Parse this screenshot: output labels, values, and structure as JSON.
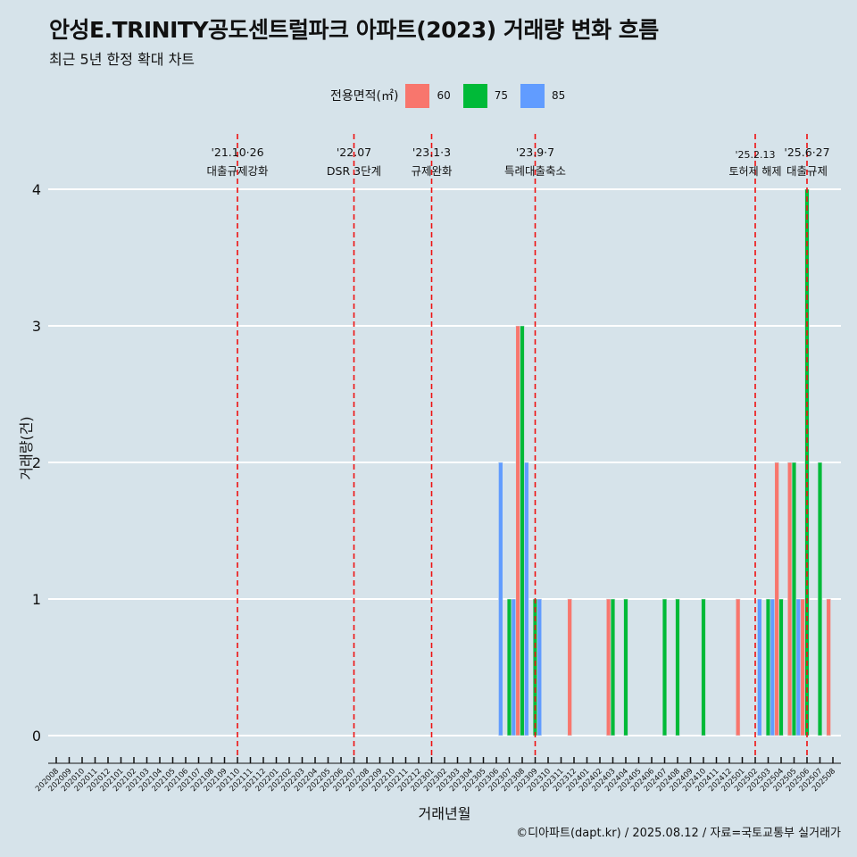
{
  "title": "안성E.TRINITY공도센트럴파크 아파트(2023) 거래량 변화 흐름",
  "subtitle": "최근 5년 한정 확대 차트",
  "caption": "©디아파트(dapt.kr) / 2025.08.12 / 자료=국토교통부 실거래가",
  "legend": {
    "title": "전용면적(㎡)",
    "items": [
      {
        "label": "60",
        "color": "#f8766d"
      },
      {
        "label": "75",
        "color": "#00ba38"
      },
      {
        "label": "85",
        "color": "#619cff"
      }
    ]
  },
  "chart_data": {
    "type": "bar",
    "title": "안성E.TRINITY공도센트럴파크 아파트(2023) 거래량 변화 흐름",
    "xlabel": "거래년월",
    "ylabel": "거래량(건)",
    "ylim": [
      0,
      4
    ],
    "yticks": [
      0,
      1,
      2,
      3,
      4
    ],
    "grid": "horizontal",
    "legend_position": "top",
    "categories": [
      "202008",
      "202009",
      "202010",
      "202011",
      "202012",
      "202101",
      "202102",
      "202103",
      "202104",
      "202105",
      "202106",
      "202107",
      "202108",
      "202109",
      "202110",
      "202111",
      "202112",
      "202201",
      "202202",
      "202203",
      "202204",
      "202205",
      "202206",
      "202207",
      "202208",
      "202209",
      "202210",
      "202211",
      "202212",
      "202301",
      "202302",
      "202303",
      "202304",
      "202305",
      "202306",
      "202307",
      "202308",
      "202309",
      "202310",
      "202311",
      "202312",
      "202401",
      "202402",
      "202403",
      "202404",
      "202405",
      "202406",
      "202407",
      "202408",
      "202409",
      "202410",
      "202411",
      "202412",
      "202501",
      "202502",
      "202503",
      "202504",
      "202505",
      "202506",
      "202507",
      "202508"
    ],
    "series": [
      {
        "name": "60",
        "color": "#f8766d",
        "values": [
          0,
          0,
          0,
          0,
          0,
          0,
          0,
          0,
          0,
          0,
          0,
          0,
          0,
          0,
          0,
          0,
          0,
          0,
          0,
          0,
          0,
          0,
          0,
          0,
          0,
          0,
          0,
          0,
          0,
          0,
          0,
          0,
          0,
          0,
          0,
          0,
          3,
          0,
          0,
          0,
          1,
          0,
          0,
          1,
          0,
          0,
          0,
          0,
          0,
          0,
          0,
          0,
          0,
          1,
          0,
          0,
          2,
          2,
          1,
          0,
          1
        ]
      },
      {
        "name": "75",
        "color": "#00ba38",
        "values": [
          0,
          0,
          0,
          0,
          0,
          0,
          0,
          0,
          0,
          0,
          0,
          0,
          0,
          0,
          0,
          0,
          0,
          0,
          0,
          0,
          0,
          0,
          0,
          0,
          0,
          0,
          0,
          0,
          0,
          0,
          0,
          0,
          0,
          0,
          0,
          1,
          3,
          1,
          0,
          0,
          0,
          0,
          0,
          1,
          1,
          0,
          0,
          1,
          1,
          0,
          1,
          0,
          0,
          0,
          0,
          1,
          1,
          2,
          4,
          2,
          0
        ]
      },
      {
        "name": "85",
        "color": "#619cff",
        "values": [
          0,
          0,
          0,
          0,
          0,
          0,
          0,
          0,
          0,
          0,
          0,
          0,
          0,
          0,
          0,
          0,
          0,
          0,
          0,
          0,
          0,
          0,
          0,
          0,
          0,
          0,
          0,
          0,
          0,
          0,
          0,
          0,
          0,
          0,
          2,
          1,
          2,
          1,
          0,
          0,
          0,
          0,
          0,
          0,
          0,
          0,
          0,
          0,
          0,
          0,
          0,
          0,
          0,
          0,
          1,
          1,
          0,
          1,
          0,
          0,
          0
        ]
      }
    ],
    "annotations": [
      {
        "month": "202110",
        "date": "'21.10·26",
        "label": "대출규제강화"
      },
      {
        "month": "202207",
        "date": "'22.07",
        "label": "DSR 3단계"
      },
      {
        "month": "202301",
        "date": "'23.1·3",
        "label": "규제완화"
      },
      {
        "month": "202309",
        "date": "'23.9·7",
        "label": "특례대출축소"
      },
      {
        "month": "202502",
        "date": "'25.2.13",
        "label": "토허제 해제"
      },
      {
        "month": "202506",
        "date": "'25.6·27",
        "label": "대출규제"
      }
    ]
  }
}
